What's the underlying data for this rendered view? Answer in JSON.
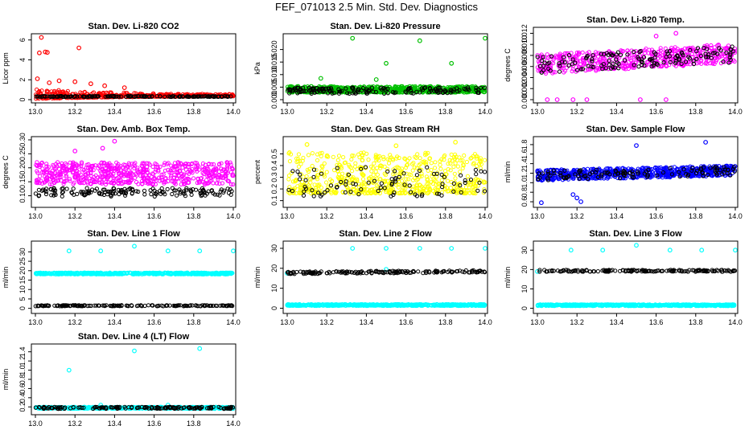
{
  "figure": {
    "title": "FEF_071013  2.5 Min. Std. Dev. Diagnostics"
  },
  "colors": {
    "red": "#ff0000",
    "green": "#00c000",
    "magenta": "#ff00ff",
    "yellow": "#ffff00",
    "blue": "#0000ff",
    "cyan": "#00ffff",
    "black": "#000000"
  },
  "chart_data": [
    {
      "id": "co2",
      "type": "scatter",
      "title": "Stan. Dev. Li-820 CO2",
      "ylabel": "Licor ppm",
      "xlim": [
        13.0,
        14.0
      ],
      "xticks": [
        "13.0",
        "13.2",
        "13.4",
        "13.6",
        "13.8",
        "14.0"
      ],
      "ylim": [
        0,
        6.3
      ],
      "yticks": [
        "0",
        "2",
        "4",
        "6"
      ],
      "series": [
        {
          "name": "primary",
          "color": "red",
          "n": 520,
          "base": 0.35,
          "spread": 0.9,
          "trend_end": 0.4,
          "decay": 2.5,
          "skew": 2.5,
          "outliers": [
            [
              13.03,
              6.25
            ],
            [
              13.02,
              4.7
            ],
            [
              13.05,
              4.8
            ],
            [
              13.06,
              4.75
            ],
            [
              13.22,
              5.2
            ],
            [
              13.01,
              2.1
            ],
            [
              13.07,
              1.7
            ],
            [
              13.12,
              1.9
            ],
            [
              13.2,
              1.8
            ],
            [
              13.28,
              1.6
            ],
            [
              13.35,
              1.4
            ],
            [
              13.45,
              1.2
            ]
          ]
        },
        {
          "name": "black",
          "color": "black",
          "n": 160,
          "base": 0.3,
          "spread": 0.08,
          "skew": 1
        }
      ]
    },
    {
      "id": "pressure",
      "type": "scatter",
      "title": "Stan. Dev. Li-820 Pressure",
      "ylabel": "kPa",
      "xlim": [
        13.0,
        14.0
      ],
      "xticks": [
        "13.0",
        "13.2",
        "13.4",
        "13.6",
        "13.8",
        "14.0"
      ],
      "ylim": [
        0,
        0.025
      ],
      "yticks": [
        "0.000",
        "0.005",
        "0.010",
        "0.015",
        "0.020"
      ],
      "series": [
        {
          "name": "primary",
          "color": "green",
          "n": 700,
          "base": 0.0035,
          "spread": 0.0025,
          "skew": 1.2,
          "outliers": [
            [
              13.33,
              0.0245
            ],
            [
              13.5,
              0.0145
            ],
            [
              13.67,
              0.0235
            ],
            [
              13.83,
              0.0145
            ],
            [
              14.0,
              0.0245
            ],
            [
              13.17,
              0.0085
            ],
            [
              13.45,
              0.008
            ]
          ]
        },
        {
          "name": "black",
          "color": "black",
          "n": 160,
          "base": 0.003,
          "spread": 0.0025,
          "skew": 1
        }
      ]
    },
    {
      "id": "temp",
      "type": "scatter",
      "title": "Stan. Dev. Li-820 Temp.",
      "ylabel": "degrees C",
      "xlim": [
        13.0,
        14.0
      ],
      "xticks": [
        "13.0",
        "13.2",
        "13.4",
        "13.6",
        "13.8",
        "14.0"
      ],
      "ylim": [
        0,
        0.0125
      ],
      "yticks": [
        "0.000",
        "0.002",
        "0.004",
        "0.006",
        "0.008",
        "0.010",
        "0.012"
      ],
      "series": [
        {
          "name": "primary",
          "color": "magenta",
          "n": 520,
          "base": 0.0055,
          "spread": 0.0035,
          "trend_end": 0.0075,
          "skew": 1,
          "outliers": [
            [
              13.05,
              0.0
            ],
            [
              13.1,
              0.0
            ],
            [
              13.18,
              0.0
            ],
            [
              13.25,
              0.0
            ],
            [
              13.52,
              0.0
            ],
            [
              13.7,
              0.012
            ],
            [
              13.6,
              0.0115
            ],
            [
              13.65,
              0.0
            ]
          ]
        },
        {
          "name": "black",
          "color": "black",
          "n": 140,
          "base": 0.0055,
          "spread": 0.003,
          "trend_end": 0.0075,
          "skew": 1
        }
      ]
    },
    {
      "id": "ambtemp",
      "type": "scatter",
      "title": "Stan. Dev. Amb. Box Temp.",
      "ylabel": "degrees C",
      "xlim": [
        13.0,
        14.0
      ],
      "xticks": [
        "13.0",
        "13.2",
        "13.4",
        "13.6",
        "13.8",
        "14.0"
      ],
      "ylim": [
        0.07,
        0.3
      ],
      "yticks": [
        "0.10",
        "0.15",
        "0.20",
        "0.25",
        "0.30"
      ],
      "series": [
        {
          "name": "primary",
          "color": "magenta",
          "n": 620,
          "base": 0.16,
          "spread": 0.08,
          "skew": 1,
          "outliers": [
            [
              13.4,
              0.295
            ],
            [
              13.34,
              0.27
            ],
            [
              13.2,
              0.26
            ]
          ]
        },
        {
          "name": "black",
          "color": "black",
          "n": 160,
          "base": 0.105,
          "spread": 0.03,
          "skew": 1
        }
      ]
    },
    {
      "id": "rh",
      "type": "scatter",
      "title": "Stan. Dev. Gas Stream RH",
      "ylabel": "percent",
      "xlim": [
        13.0,
        14.0
      ],
      "xticks": [
        "13.0",
        "13.2",
        "13.4",
        "13.6",
        "13.8",
        "14.0"
      ],
      "ylim": [
        0.07,
        0.62
      ],
      "yticks": [
        "0.1",
        "0.2",
        "0.3",
        "0.4",
        "0.5"
      ],
      "series": [
        {
          "name": "primary",
          "color": "yellow",
          "n": 620,
          "base": 0.25,
          "spread": 0.35,
          "skew": 1.8,
          "outliers": [
            [
              13.1,
              0.58
            ],
            [
              13.55,
              0.57
            ],
            [
              13.85,
              0.6
            ]
          ]
        },
        {
          "name": "black",
          "color": "black",
          "n": 90,
          "base": 0.2,
          "spread": 0.25,
          "skew": 1.2
        }
      ]
    },
    {
      "id": "sampleflow",
      "type": "scatter",
      "title": "Stan. Dev. Sample Flow",
      "ylabel": "ml/min",
      "xlim": [
        13.0,
        14.0
      ],
      "xticks": [
        "13.0",
        "13.2",
        "13.4",
        "13.6",
        "13.8",
        "14.0"
      ],
      "ylim": [
        0.55,
        1.9
      ],
      "yticks": [
        "0.6",
        "0.8",
        "1.0",
        "1.2",
        "1.4",
        "1.6",
        "1.8"
      ],
      "series": [
        {
          "name": "primary",
          "color": "blue",
          "n": 640,
          "base": 1.1,
          "spread": 0.22,
          "trend_end": 1.2,
          "skew": 1,
          "outliers": [
            [
              13.5,
              1.78
            ],
            [
              13.85,
              1.85
            ],
            [
              13.22,
              0.6
            ],
            [
              13.02,
              0.58
            ],
            [
              13.2,
              0.68
            ],
            [
              13.18,
              0.75
            ]
          ]
        },
        {
          "name": "black",
          "color": "black",
          "n": 110,
          "base": 1.1,
          "spread": 0.2,
          "trend_end": 1.2,
          "skew": 1
        }
      ]
    },
    {
      "id": "line1",
      "type": "scatter",
      "title": "Stan. Dev. Line 1 Flow",
      "ylabel": "ml/min",
      "xlim": [
        13.0,
        14.0
      ],
      "xticks": [
        "13.0",
        "13.2",
        "13.4",
        "13.6",
        "13.8",
        "14.0"
      ],
      "ylim": [
        -1,
        34
      ],
      "yticks": [
        "0",
        "5",
        "10",
        "15",
        "20",
        "25",
        "30"
      ],
      "series": [
        {
          "name": "primary",
          "color": "cyan",
          "n": 560,
          "base": 18.3,
          "spread": 0.9,
          "skew": 1,
          "outliers": [
            [
              13.17,
              30.5
            ],
            [
              13.33,
              30.5
            ],
            [
              13.5,
              33
            ],
            [
              13.67,
              30.5
            ],
            [
              13.83,
              30.5
            ],
            [
              14.0,
              30.5
            ]
          ]
        },
        {
          "name": "black",
          "color": "black",
          "n": 160,
          "base": 1.3,
          "spread": 0.5,
          "skew": 1
        }
      ]
    },
    {
      "id": "line2",
      "type": "scatter",
      "title": "Stan. Dev. Line 2 Flow",
      "ylabel": "ml/min",
      "xlim": [
        13.0,
        14.0
      ],
      "xticks": [
        "13.0",
        "13.2",
        "13.4",
        "13.6",
        "13.8",
        "14.0"
      ],
      "ylim": [
        -1,
        32
      ],
      "yticks": [
        "0",
        "10",
        "20",
        "30"
      ],
      "series": [
        {
          "name": "primary",
          "color": "cyan",
          "n": 560,
          "base": 1.4,
          "spread": 0.8,
          "skew": 1,
          "outliers": [
            [
              13.33,
              30
            ],
            [
              13.5,
              30
            ],
            [
              13.67,
              30
            ],
            [
              13.83,
              30
            ],
            [
              14.0,
              30
            ],
            [
              13.5,
              19.5
            ],
            [
              13.0,
              17.5
            ]
          ]
        },
        {
          "name": "black",
          "color": "black",
          "n": 160,
          "base": 17.4,
          "spread": 1.2,
          "trend_end": 18.2,
          "skew": 1
        }
      ]
    },
    {
      "id": "line3",
      "type": "scatter",
      "title": "Stan. Dev. Line 3 Flow",
      "ylabel": "ml/min",
      "xlim": [
        13.0,
        14.0
      ],
      "xticks": [
        "13.0",
        "13.2",
        "13.4",
        "13.6",
        "13.8",
        "14.0"
      ],
      "ylim": [
        -1,
        33
      ],
      "yticks": [
        "0",
        "10",
        "20",
        "30"
      ],
      "series": [
        {
          "name": "primary",
          "color": "cyan",
          "n": 560,
          "base": 1.4,
          "spread": 0.8,
          "skew": 1,
          "outliers": [
            [
              13.17,
              30
            ],
            [
              13.33,
              30
            ],
            [
              13.5,
              32.5
            ],
            [
              13.67,
              30
            ],
            [
              13.83,
              30
            ],
            [
              14.0,
              30
            ],
            [
              13.0,
              19
            ]
          ]
        },
        {
          "name": "black",
          "color": "black",
          "n": 160,
          "base": 19.1,
          "spread": 0.9,
          "skew": 1
        }
      ]
    },
    {
      "id": "line4",
      "type": "scatter",
      "title": "Stan. Dev. Line 4 (LT) Flow",
      "ylabel": "ml/min",
      "xlim": [
        13.0,
        14.0
      ],
      "xticks": [
        "13.0",
        "13.2",
        "13.4",
        "13.6",
        "13.8",
        "14.0"
      ],
      "ylim": [
        0.1,
        1.5
      ],
      "yticks": [
        "0.2",
        "0.4",
        "0.6",
        "0.8",
        "1.0",
        "1.2",
        "1.4"
      ],
      "series": [
        {
          "name": "primary",
          "color": "cyan",
          "n": 560,
          "base": 0.17,
          "spread": 0.04,
          "skew": 1,
          "outliers": [
            [
              13.17,
              1.0
            ],
            [
              13.5,
              1.42
            ],
            [
              13.83,
              1.47
            ],
            [
              13.33,
              0.24
            ],
            [
              13.67,
              0.24
            ]
          ]
        },
        {
          "name": "black",
          "color": "black",
          "n": 160,
          "base": 0.17,
          "spread": 0.04,
          "skew": 1
        }
      ]
    }
  ]
}
